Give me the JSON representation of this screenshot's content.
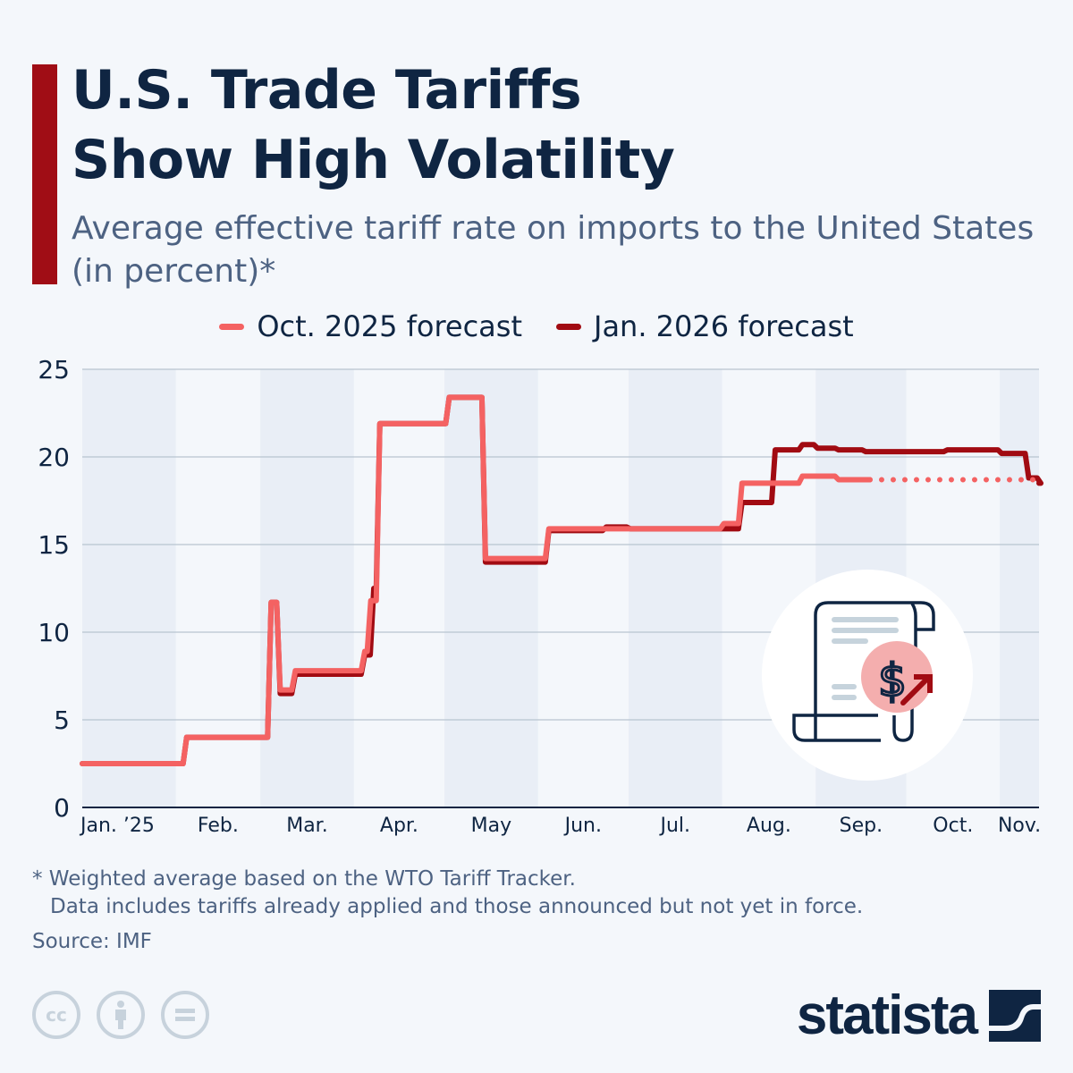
{
  "header": {
    "title_line1": "U.S. Trade Tariffs",
    "title_line2": "Show High Volatility",
    "subtitle": "Average effective tariff rate on imports to the United States (in percent)*"
  },
  "colors": {
    "accent": "#a00d15",
    "oct_2025": "#f46262",
    "jan_2026": "#a10b12",
    "title": "#0f2542",
    "band": "#e9eef6"
  },
  "chart_data": {
    "type": "line",
    "step": true,
    "ylim": [
      0,
      25
    ],
    "yticks": [
      0,
      5,
      10,
      15,
      20,
      25
    ],
    "xlim": [
      "2025-01-01",
      "2025-11-14"
    ],
    "xtick_labels": [
      {
        "label": "Jan. ’25",
        "date": "2025-01-01"
      },
      {
        "label": "Feb.",
        "date": "2025-02-01"
      },
      {
        "label": "Mar.",
        "date": "2025-03-01"
      },
      {
        "label": "Apr.",
        "date": "2025-04-01"
      },
      {
        "label": "May",
        "date": "2025-05-01"
      },
      {
        "label": "Jun.",
        "date": "2025-06-01"
      },
      {
        "label": "Jul.",
        "date": "2025-07-01"
      },
      {
        "label": "Aug.",
        "date": "2025-08-01"
      },
      {
        "label": "Sep.",
        "date": "2025-09-01"
      },
      {
        "label": "Oct.",
        "date": "2025-10-01"
      },
      {
        "label": "Nov.",
        "date": "2025-11-01"
      }
    ],
    "grid": true,
    "alternating_month_bands": true,
    "legend_position": "top",
    "series": [
      {
        "name": "Jan. 2026 forecast",
        "color": "#a10b12",
        "points": [
          [
            "2025-01-01",
            2.5
          ],
          [
            "2025-02-04",
            4.0
          ],
          [
            "2025-03-04",
            11.7
          ],
          [
            "2025-03-07",
            6.5
          ],
          [
            "2025-03-12",
            7.6
          ],
          [
            "2025-04-04",
            8.7
          ],
          [
            "2025-04-07",
            12.5
          ],
          [
            "2025-04-09",
            21.9
          ],
          [
            "2025-05-02",
            23.4
          ],
          [
            "2025-05-14",
            14.0
          ],
          [
            "2025-06-04",
            15.8
          ],
          [
            "2025-06-23",
            16.0
          ],
          [
            "2025-07-01",
            15.9
          ],
          [
            "2025-08-07",
            17.4
          ],
          [
            "2025-08-18",
            20.4
          ],
          [
            "2025-08-27",
            20.7
          ],
          [
            "2025-09-01",
            20.5
          ],
          [
            "2025-09-08",
            20.4
          ],
          [
            "2025-09-17",
            20.3
          ],
          [
            "2025-10-14",
            20.4
          ],
          [
            "2025-11-01",
            20.2
          ],
          [
            "2025-11-10",
            18.8
          ],
          [
            "2025-11-14",
            18.5
          ]
        ]
      },
      {
        "name": "Oct. 2025 forecast",
        "color": "#f46262",
        "dotted_from": "2025-09-19",
        "points": [
          [
            "2025-01-01",
            2.5
          ],
          [
            "2025-02-04",
            4.0
          ],
          [
            "2025-03-04",
            11.7
          ],
          [
            "2025-03-07",
            6.7
          ],
          [
            "2025-03-12",
            7.8
          ],
          [
            "2025-04-04",
            8.9
          ],
          [
            "2025-04-06",
            11.8
          ],
          [
            "2025-04-09",
            21.9
          ],
          [
            "2025-05-02",
            23.4
          ],
          [
            "2025-05-14",
            14.2
          ],
          [
            "2025-06-04",
            15.9
          ],
          [
            "2025-08-01",
            16.2
          ],
          [
            "2025-08-07",
            18.5
          ],
          [
            "2025-08-27",
            18.9
          ],
          [
            "2025-09-08",
            18.7
          ],
          [
            "2025-11-14",
            18.7
          ]
        ]
      }
    ]
  },
  "legend": [
    {
      "label": "Oct. 2025 forecast",
      "color": "#f46262"
    },
    {
      "label": "Jan. 2026 forecast",
      "color": "#a10b12"
    }
  ],
  "illustration": {
    "icon": "receipt-dollar-rising-icon"
  },
  "footer": {
    "note_line1": "* Weighted average based on the WTO Tariff Tracker.",
    "note_line2": "Data includes tariffs already applied and those announced but not yet in force.",
    "source": "Source: IMF",
    "license_icons": [
      "cc-icon",
      "attribution-icon",
      "no-derivatives-icon"
    ],
    "brand": "statista"
  }
}
